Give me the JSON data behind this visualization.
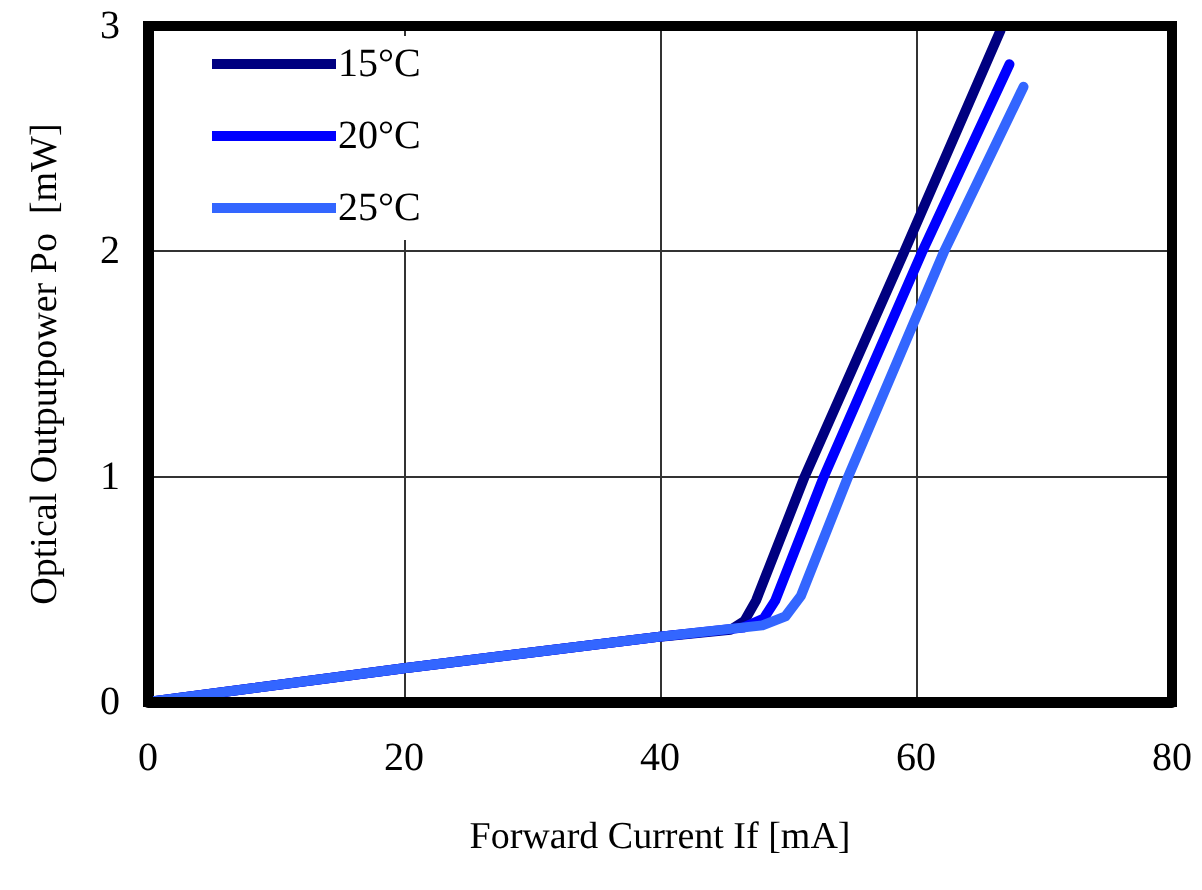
{
  "chart_data": {
    "type": "line",
    "xlabel": "Forward Current If [mA]",
    "ylabel": "Optical Outputpower Po  [mW]",
    "xlim": [
      0,
      80
    ],
    "xticks": [
      0,
      20,
      40,
      60,
      80
    ],
    "ylim": [
      0,
      3
    ],
    "yticks": [
      0,
      1,
      2,
      3
    ],
    "grid": true,
    "legend": "top left",
    "marker": "none",
    "line_style": "solid",
    "series": [
      {
        "name": "15°C",
        "color": "#000080",
        "x": [
          0,
          20,
          40,
          45.5,
          46.6,
          47.5,
          51.3,
          59.1,
          66.6
        ],
        "values": [
          0,
          0.15,
          0.29,
          0.32,
          0.36,
          0.45,
          1,
          2,
          2.98
        ]
      },
      {
        "name": "20°C",
        "color": "#0000ff",
        "x": [
          0,
          20,
          40,
          46.5,
          48.1,
          49,
          52.8,
          60.5,
          67.3
        ],
        "values": [
          0,
          0.15,
          0.29,
          0.33,
          0.37,
          0.45,
          1,
          2,
          2.83
        ]
      },
      {
        "name": "25°C",
        "color": "#3366ff",
        "x": [
          0,
          20,
          40,
          48,
          49.8,
          51,
          54.7,
          62.2,
          68.4
        ],
        "values": [
          0,
          0.15,
          0.29,
          0.34,
          0.38,
          0.47,
          1,
          2,
          2.73
        ]
      }
    ]
  }
}
